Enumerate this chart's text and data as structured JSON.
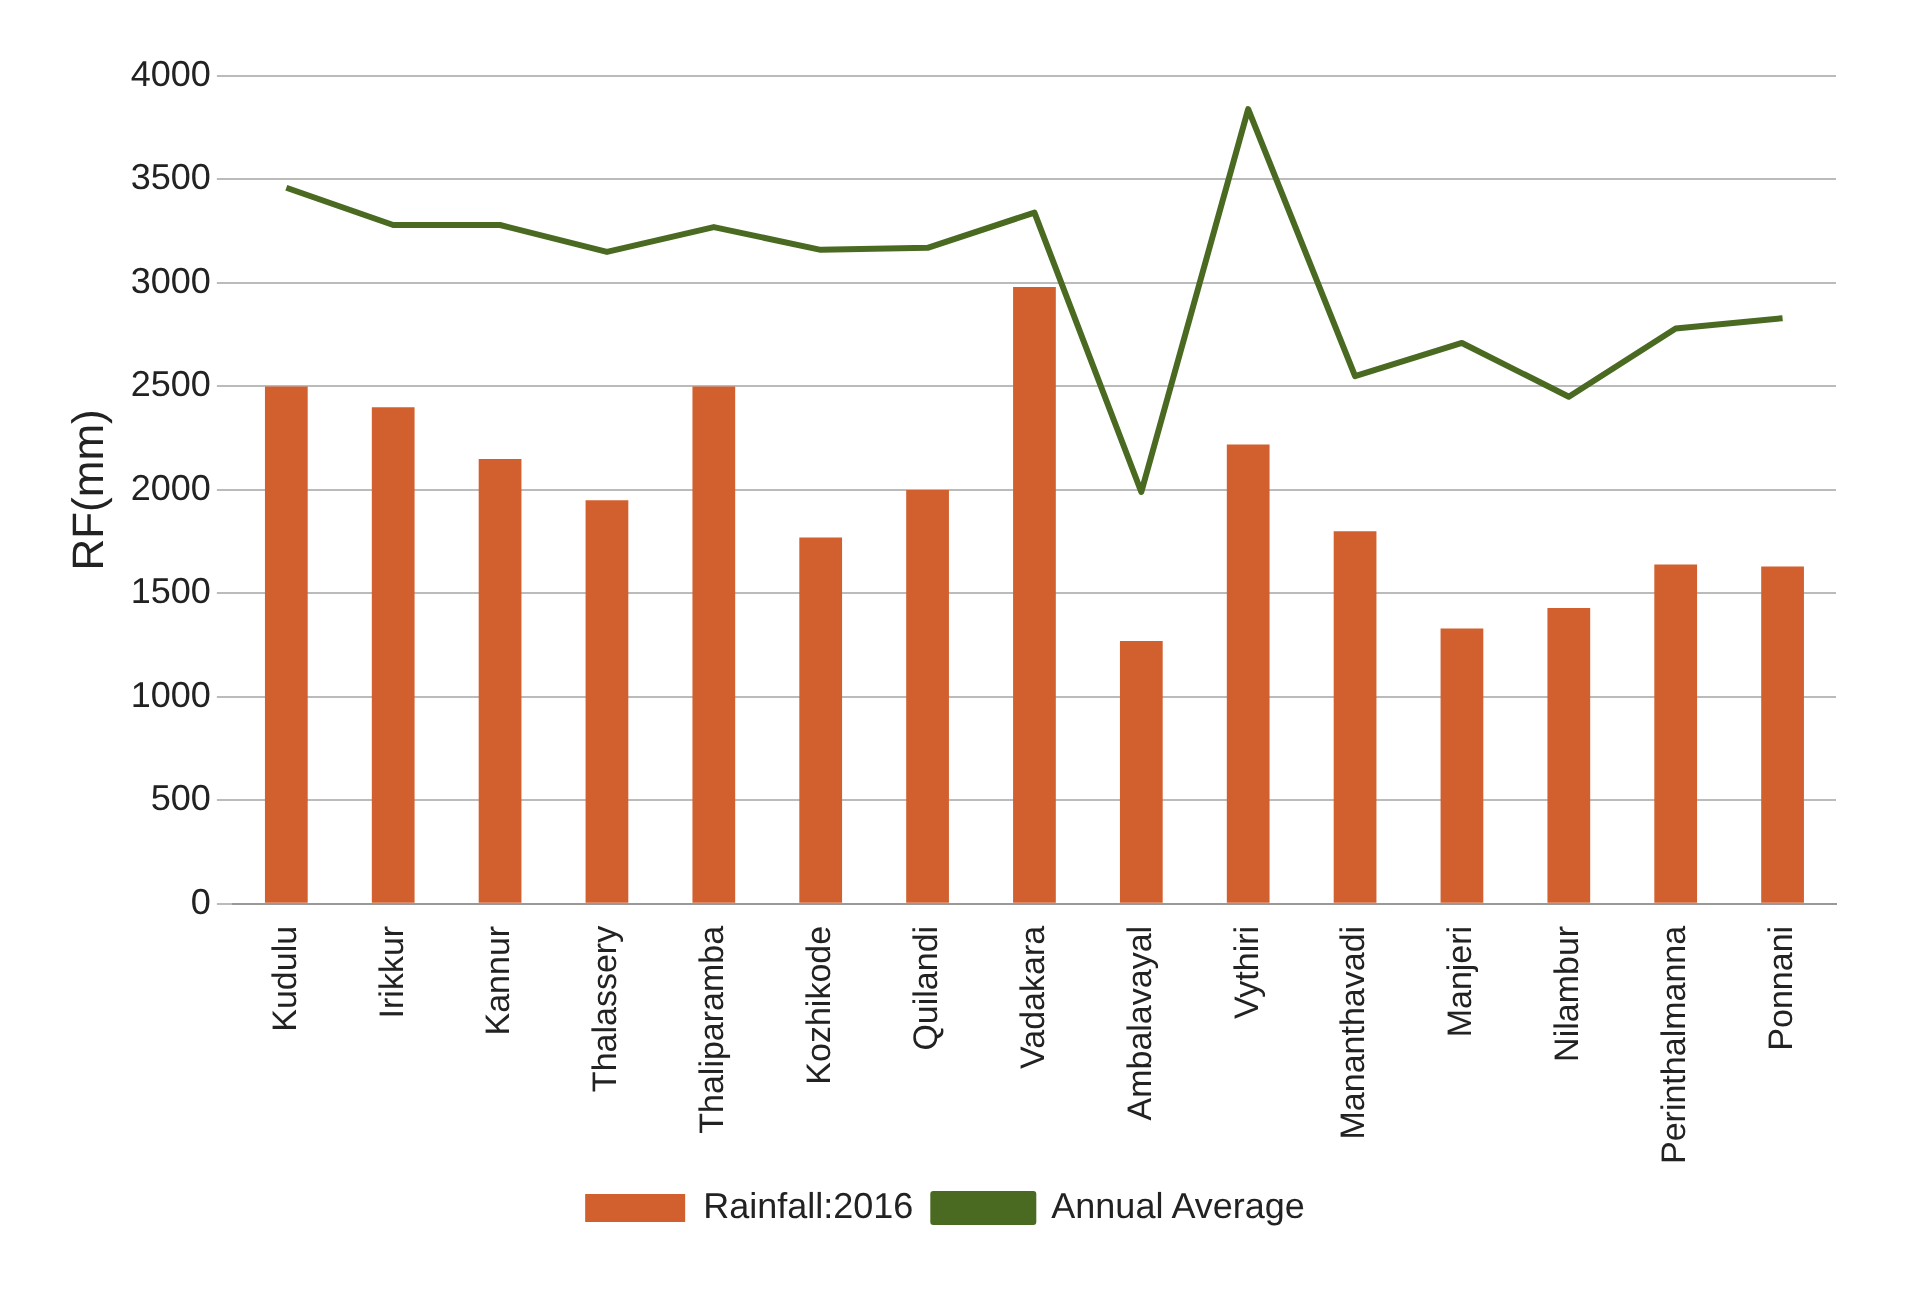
{
  "chart_data": {
    "type": "bar",
    "ylabel": "RF(mm)",
    "categories": [
      "Kudulu",
      "Irikkur",
      "Kannur",
      "Thalassery",
      "Thaliparamba",
      "Kozhikode",
      "Quilandi",
      "Vadakara",
      "Ambalavayal",
      "Vythiri",
      "Mananthavadi",
      "Manjeri",
      "Nilambur",
      "Perinthalmanna",
      "Ponnani"
    ],
    "series": [
      {
        "name": "Rainfall:2016",
        "color": "#d2602e",
        "values": [
          2500,
          2400,
          2150,
          1950,
          2500,
          1770,
          2000,
          2980,
          1270,
          2220,
          1800,
          1330,
          1430,
          1640,
          1630
        ]
      },
      {
        "name": "Annual Average",
        "type": "line",
        "color": "#4a6a22",
        "values": [
          3460,
          3280,
          3280,
          3150,
          3270,
          3160,
          3170,
          3340,
          1990,
          3840,
          2550,
          2710,
          2450,
          2780,
          2830
        ]
      }
    ],
    "ylim": [
      0,
      4000
    ],
    "yticks": [
      0,
      500,
      1000,
      1500,
      2000,
      2500,
      3000,
      3500,
      4000
    ],
    "grid": "y",
    "legend": "bottom",
    "marker": "none"
  }
}
